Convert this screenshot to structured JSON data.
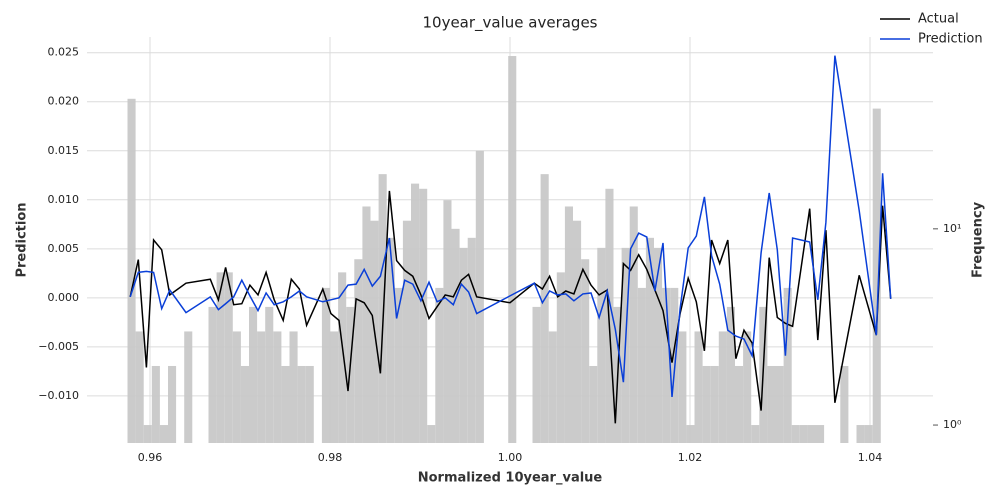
{
  "chart_data": [
    {
      "type": "line",
      "title": "10year_value averages",
      "xlabel": "Normalized 10year_value",
      "ylabel": "Prediction",
      "xlim": [
        0.953,
        1.047
      ],
      "xticks": [
        0.96,
        0.98,
        {
          "value": 1.0,
          "label": "1.00"
        },
        1.02,
        1.04
      ],
      "ylim": [
        -0.0148,
        0.0266
      ],
      "yticks": [
        {
          "value": -0.01,
          "label": "−0.010"
        },
        {
          "value": -0.005,
          "label": "−0.005"
        },
        {
          "value": 0,
          "label": "0.000"
        },
        {
          "value": 0.005,
          "label": "0.005"
        },
        {
          "value": 0.01,
          "label": "0.010"
        },
        {
          "value": 0.015,
          "label": "0.015"
        },
        {
          "value": 0.02,
          "label": "0.020"
        },
        {
          "value": 0.025,
          "label": "0.025"
        }
      ],
      "grid": true,
      "legend": "upper right",
      "x": [
        0.9578,
        0.9587,
        0.9596,
        0.9604,
        0.9613,
        0.9622,
        0.964,
        0.9667,
        0.9676,
        0.9684,
        0.9693,
        0.9702,
        0.9711,
        0.972,
        0.9729,
        0.9738,
        0.9748,
        0.9757,
        0.9766,
        0.9774,
        0.9792,
        0.9801,
        0.981,
        0.982,
        0.9829,
        0.9838,
        0.9847,
        0.9856,
        0.9866,
        0.9874,
        0.9883,
        0.9892,
        0.9901,
        0.991,
        0.9919,
        0.9928,
        0.9937,
        0.9946,
        0.9954,
        0.9963,
        1.0,
        1.0027,
        1.0036,
        1.0044,
        1.0053,
        1.0062,
        1.0071,
        1.0081,
        1.009,
        1.0099,
        1.0108,
        1.0117,
        1.0126,
        1.0134,
        1.0143,
        1.0152,
        1.0161,
        1.017,
        1.018,
        1.0189,
        1.0198,
        1.0207,
        1.0216,
        1.0224,
        1.0233,
        1.0242,
        1.0251,
        1.026,
        1.0269,
        1.0279,
        1.0288,
        1.0297,
        1.0306,
        1.0314,
        1.0333,
        1.0342,
        1.0351,
        1.0361,
        1.0388,
        1.0407,
        1.0414,
        1.0423
      ],
      "series": [
        {
          "name": "Actual",
          "color": "#000000",
          "values": [
            0.0001,
            0.0039,
            -0.0071,
            0.0059,
            0.0049,
            0.0003,
            0.0015,
            0.0019,
            -0.0002,
            0.0031,
            -0.0007,
            -0.0006,
            0.0013,
            0.0003,
            0.0026,
            -0.0002,
            -0.0023,
            0.0019,
            0.0009,
            -0.0028,
            0.0009,
            -0.0016,
            -0.0023,
            -0.0095,
            -0.0001,
            -0.0005,
            -0.0018,
            -0.0077,
            0.0109,
            0.0038,
            0.0028,
            0.0022,
            0.0003,
            -0.0021,
            -0.0009,
            0.0003,
            0.0001,
            0.0018,
            0.0024,
            0.0001,
            -0.0005,
            0.0015,
            0.0009,
            0.0022,
            0.0001,
            0.0007,
            0.0004,
            0.0029,
            0.0013,
            0.0003,
            0.0008,
            -0.0128,
            0.0035,
            0.0028,
            0.0044,
            0.0029,
            0.0008,
            -0.0013,
            -0.0066,
            -0.0016,
            0.002,
            -0.0004,
            -0.0054,
            0.0059,
            0.0035,
            0.0059,
            -0.0062,
            -0.0033,
            -0.0046,
            -0.0115,
            0.0041,
            -0.002,
            -0.0026,
            -0.0029,
            0.0091,
            -0.0043,
            0.0069,
            -0.0107,
            0.0023,
            -0.0038,
            0.0094,
            -0.0001
          ]
        },
        {
          "name": "Prediction",
          "color": "#0a3fd8",
          "values": [
            0.0001,
            0.0026,
            0.0027,
            0.0026,
            -0.0011,
            0.0008,
            -0.0015,
            0.0001,
            -0.0012,
            -0.0006,
            0.0001,
            0.0018,
            0.0002,
            -0.0013,
            0.0005,
            -0.0007,
            -0.0004,
            0.0001,
            0.0007,
            0.0001,
            -0.0004,
            -0.0002,
            0,
            0.0013,
            0.0014,
            0.0029,
            0.0012,
            0.0022,
            0.0061,
            -0.0021,
            0.0018,
            0.0014,
            -0.0003,
            0.0016,
            -0.0004,
            0,
            -0.0007,
            0.0014,
            0.0006,
            -0.0016,
            0.0002,
            0.0015,
            -0.0005,
            0.0007,
            0.0003,
            0.0004,
            -0.0003,
            0.0004,
            0.0005,
            -0.002,
            0.0007,
            -0.0032,
            -0.0086,
            0.005,
            0.0066,
            0.0062,
            0.0007,
            0.0056,
            -0.0101,
            -0.0011,
            0.0051,
            0.0063,
            0.0103,
            0.0043,
            0.0014,
            -0.0033,
            -0.0039,
            -0.0042,
            -0.0059,
            0.0046,
            0.0107,
            0.0049,
            -0.0059,
            0.0061,
            0.0057,
            -0.0002,
            0.0077,
            0.0247,
            0.0089,
            -0.0038,
            0.0127,
            -0.0001
          ]
        }
      ]
    },
    {
      "type": "histogram",
      "ylabel": "Frequency",
      "color": "#c8c8c8",
      "log_scale": true,
      "ylim": [
        0.81,
        95
      ],
      "yticks": [
        {
          "value": 1,
          "label": "10⁰"
        },
        {
          "value": 10,
          "label": "10¹"
        }
      ],
      "bins": [
        0.9575,
        0.9584,
        0.9593,
        0.9602,
        0.9611,
        0.962,
        0.9629,
        0.9638,
        0.9647,
        0.9656,
        0.9665,
        0.9674,
        0.9683,
        0.9692,
        0.9701,
        0.971,
        0.9719,
        0.9728,
        0.9737,
        0.9746,
        0.9755,
        0.9764,
        0.9773,
        0.9782,
        0.9791,
        0.98,
        0.9809,
        0.9818,
        0.9827,
        0.9836,
        0.9845,
        0.9854,
        0.9863,
        0.9872,
        0.9881,
        0.989,
        0.9899,
        0.9908,
        0.9917,
        0.9926,
        0.9935,
        0.9944,
        0.9953,
        0.9962,
        0.9971,
        0.998,
        0.9989,
        0.9998,
        1.0007,
        1.0016,
        1.0025,
        1.0034,
        1.0043,
        1.0052,
        1.0061,
        1.007,
        1.0079,
        1.0088,
        1.0097,
        1.0106,
        1.0115,
        1.0124,
        1.0133,
        1.0142,
        1.0151,
        1.016,
        1.0169,
        1.0178,
        1.0187,
        1.0196,
        1.0205,
        1.0214,
        1.0223,
        1.0232,
        1.0241,
        1.025,
        1.0259,
        1.0268,
        1.0277,
        1.0286,
        1.0295,
        1.0304,
        1.0313,
        1.0322,
        1.0331,
        1.034,
        1.0349,
        1.0358,
        1.0367,
        1.0376,
        1.0385,
        1.0394,
        1.0403,
        1.0412
      ],
      "counts": [
        46,
        3,
        1,
        2,
        1,
        2,
        0,
        3,
        0,
        0,
        4,
        6,
        6,
        3,
        2,
        4,
        3,
        4,
        3,
        2,
        3,
        2,
        2,
        0,
        5,
        3,
        6,
        4,
        7,
        13,
        11,
        19,
        9,
        5,
        11,
        17,
        16,
        1,
        5,
        14,
        10,
        8,
        9,
        25,
        0,
        0,
        0,
        76,
        0,
        0,
        4,
        19,
        3,
        6,
        13,
        11,
        7,
        2,
        8,
        16,
        4,
        8,
        13,
        5,
        9,
        8,
        5,
        5,
        3,
        1,
        3,
        2,
        2,
        3,
        4,
        2,
        3,
        1,
        4,
        2,
        2,
        5,
        1,
        1,
        1,
        1,
        0,
        0,
        2,
        0,
        1,
        1,
        41
      ]
    }
  ]
}
